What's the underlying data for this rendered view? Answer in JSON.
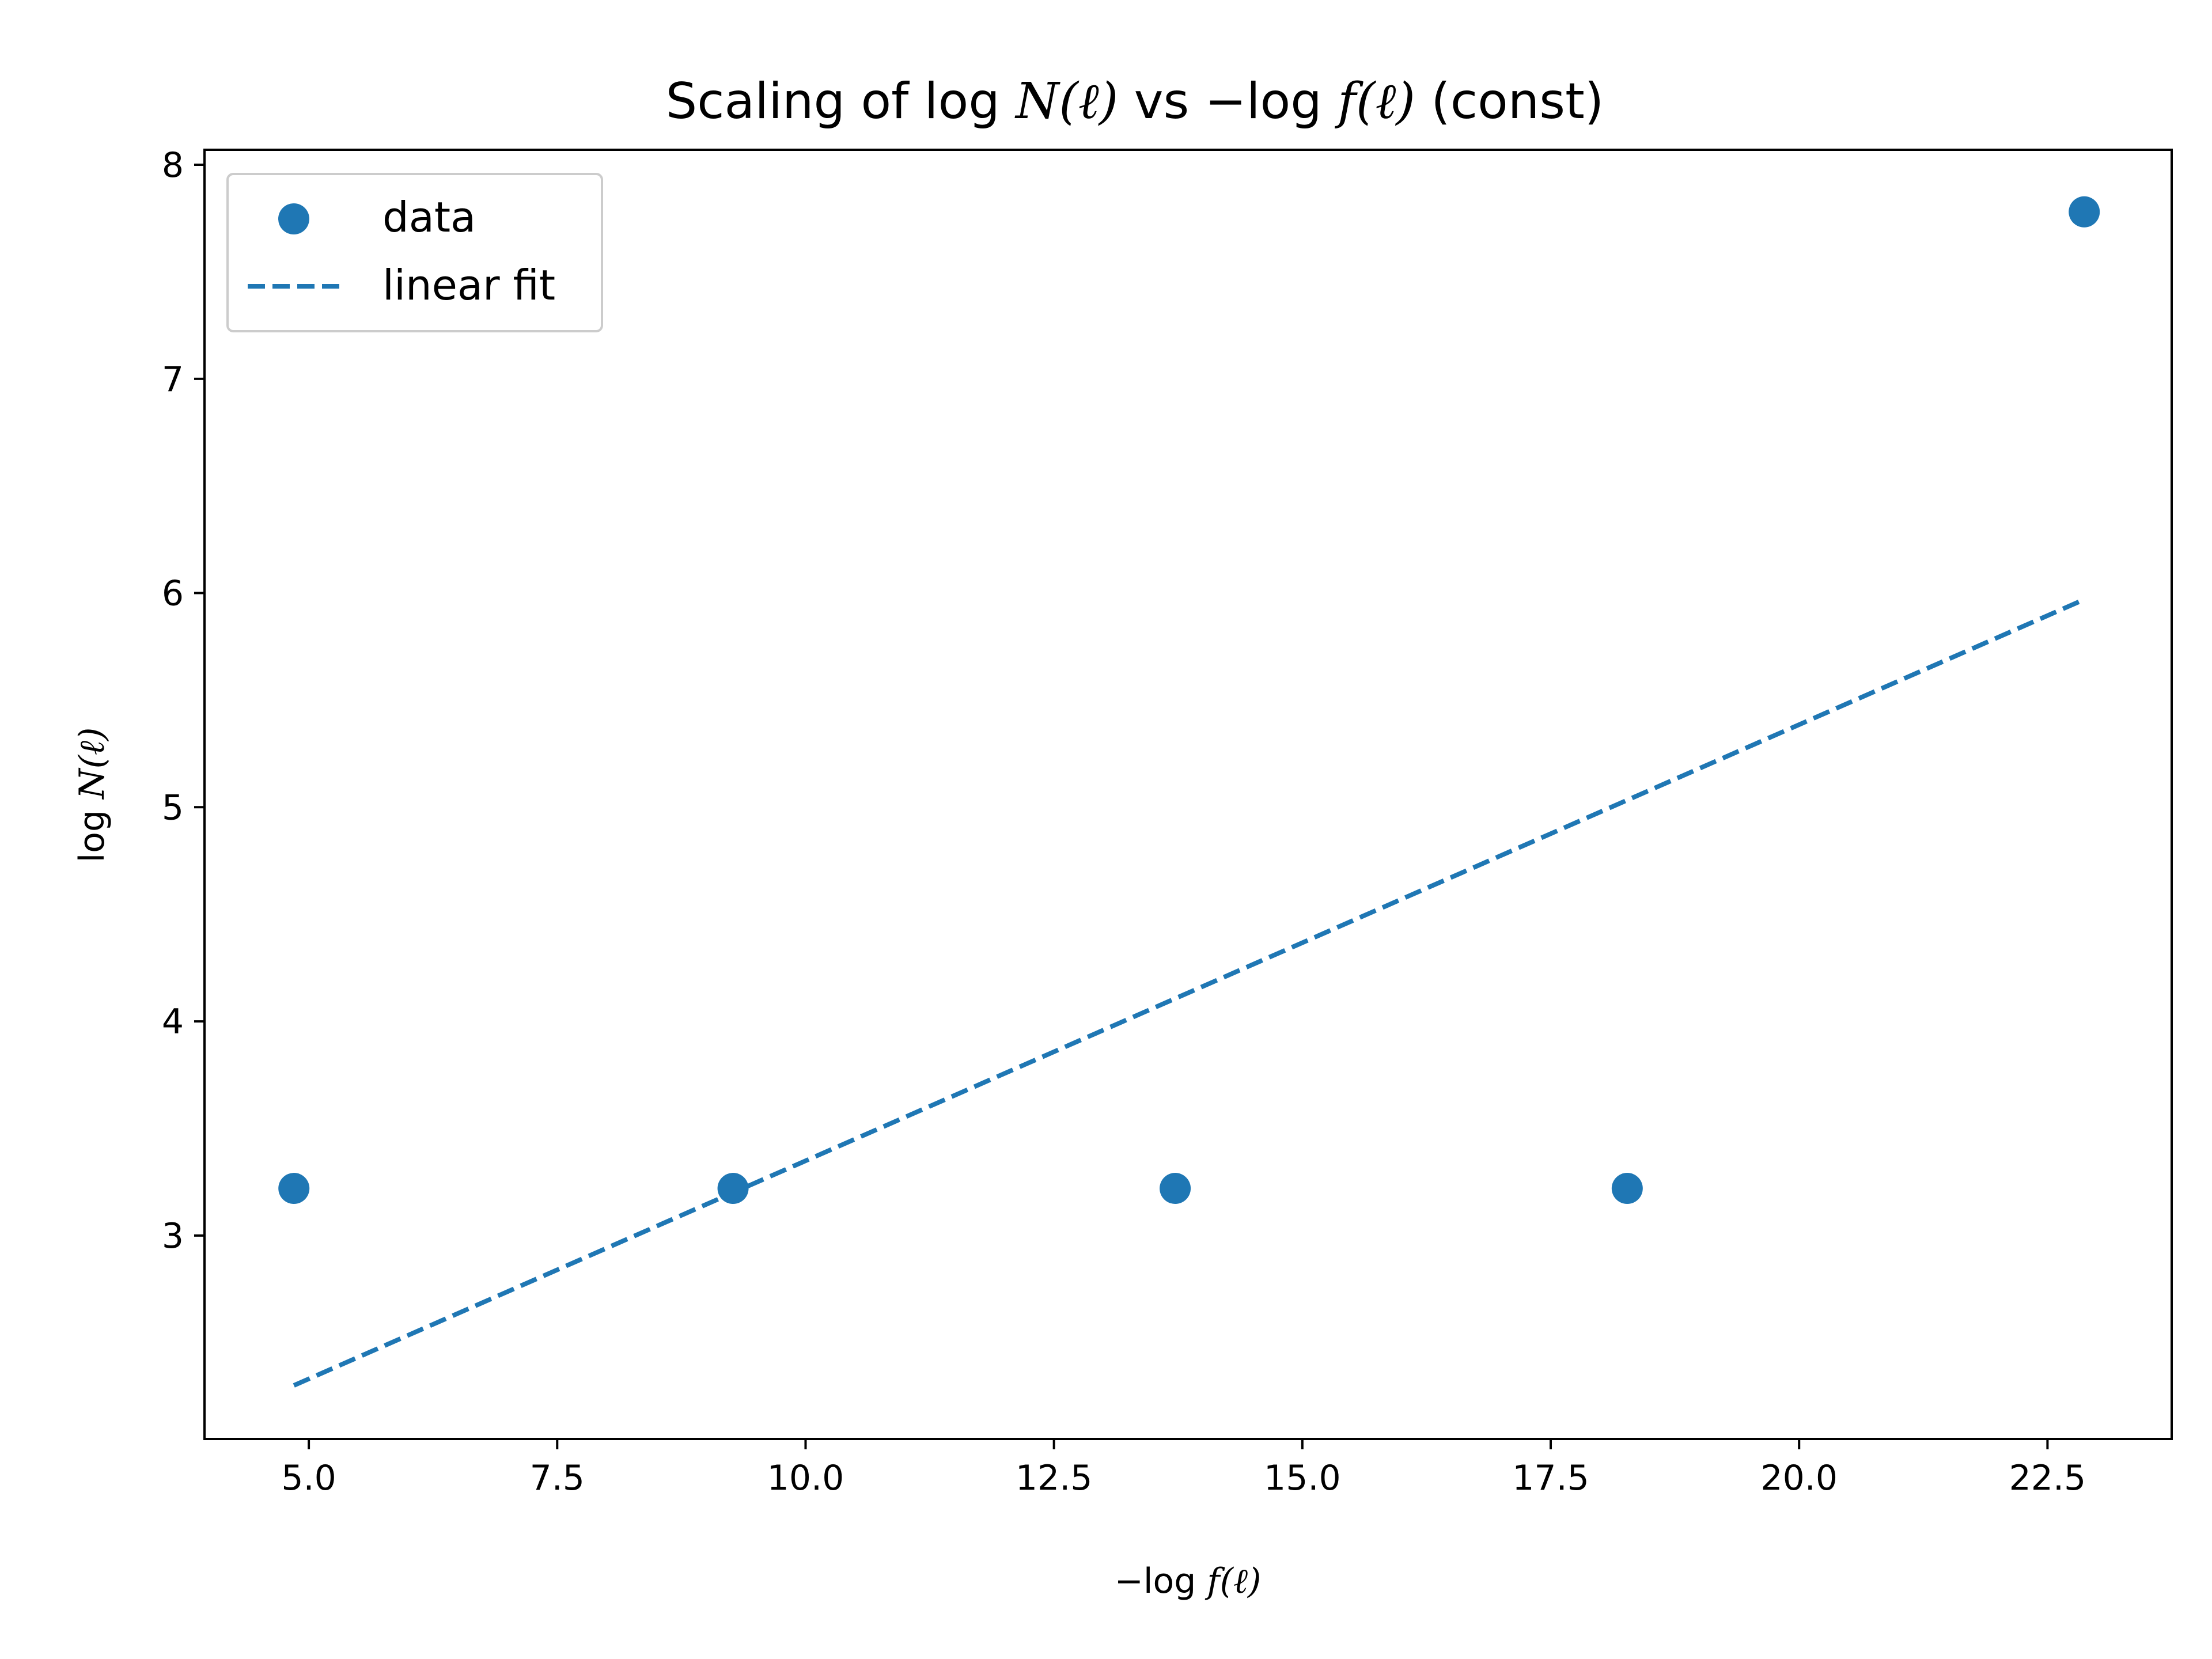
{
  "colors": {
    "series": "#1f77b4",
    "axis": "#000000",
    "background": "#ffffff"
  },
  "chart_data": {
    "type": "scatter",
    "title": "Scaling of log N̂(ℓ) vs −log f̂(ℓ) (const)",
    "title_parts": {
      "prefix": "Scaling of log ",
      "y_sym": "N",
      "ell1": "(ℓ)",
      "mid": " vs −log ",
      "x_sym": "f",
      "ell2": "(ℓ)",
      "suffix": " (const)"
    },
    "xlabel": "−log f̂(ℓ)",
    "xlabel_parts": {
      "prefix": "−log ",
      "sym": "f",
      "ell": "(ℓ)"
    },
    "ylabel": "log N̂(ℓ)",
    "ylabel_parts": {
      "prefix": "log ",
      "sym": "N",
      "ell": "(ℓ)"
    },
    "xlim": [
      3.95,
      23.75
    ],
    "ylim": [
      2.05,
      8.07
    ],
    "xticks": [
      5.0,
      7.5,
      10.0,
      12.5,
      15.0,
      17.5,
      20.0,
      22.5
    ],
    "xtick_labels": [
      "5.0",
      "7.5",
      "10.0",
      "12.5",
      "15.0",
      "17.5",
      "20.0",
      "22.5"
    ],
    "yticks": [
      3,
      4,
      5,
      6,
      7,
      8
    ],
    "ytick_labels": [
      "3",
      "4",
      "5",
      "6",
      "7",
      "8"
    ],
    "grid": false,
    "legend_position": "top-left",
    "series": [
      {
        "name": "data",
        "kind": "scatter",
        "x": [
          4.85,
          9.27,
          13.72,
          18.27,
          22.87
        ],
        "y": [
          3.22,
          3.22,
          3.22,
          3.22,
          7.78
        ]
      },
      {
        "name": "linear fit",
        "kind": "line",
        "style": "dashed",
        "x": [
          4.85,
          22.87
        ],
        "y": [
          2.3,
          5.97
        ]
      }
    ]
  }
}
